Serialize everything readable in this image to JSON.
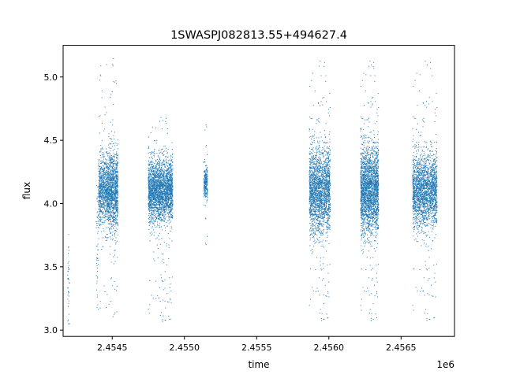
{
  "chart_data": {
    "type": "scatter",
    "title": "1SWASPJ082813.55+494627.4",
    "xlabel": "time",
    "ylabel": "flux",
    "x_offset_label": "1e6",
    "xlim": [
      2454160,
      2456870
    ],
    "ylim": [
      2.95,
      5.25
    ],
    "xticks": [
      2454500,
      2455000,
      2455500,
      2456000,
      2456500
    ],
    "xtick_labels": [
      "2.4545",
      "2.4550",
      "2.4555",
      "2.4560",
      "2.4565"
    ],
    "yticks": [
      3.0,
      3.5,
      4.0,
      4.5,
      5.0
    ],
    "ytick_labels": [
      "3.0",
      "3.5",
      "4.0",
      "4.5",
      "5.0"
    ],
    "grid": false,
    "marker_color": "#1f77b4",
    "series": [
      {
        "clusters": [
          {
            "x_start": 2454190,
            "x_end": 2454205,
            "count": 40,
            "center": 3.35,
            "spread": 0.2,
            "ymin": 3.05,
            "ymax": 3.78
          },
          {
            "x_start": 2454390,
            "x_end": 2454405,
            "count": 50,
            "center": 3.6,
            "spread": 0.3,
            "ymin": 3.05,
            "ymax": 4.3
          },
          {
            "x_start": 2454405,
            "x_end": 2454475,
            "count": 900,
            "center": 4.1,
            "spread": 0.13,
            "ymin": 3.1,
            "ymax": 5.15
          },
          {
            "x_start": 2454475,
            "x_end": 2454540,
            "count": 1100,
            "center": 4.1,
            "spread": 0.15,
            "ymin": 3.1,
            "ymax": 5.15
          },
          {
            "x_start": 2454750,
            "x_end": 2454920,
            "count": 2600,
            "center": 4.1,
            "spread": 0.12,
            "ymin": 3.05,
            "ymax": 4.7
          },
          {
            "x_start": 2455135,
            "x_end": 2455160,
            "count": 250,
            "center": 4.15,
            "spread": 0.06,
            "ymin": 3.55,
            "ymax": 4.65
          },
          {
            "x_start": 2455865,
            "x_end": 2456010,
            "count": 2200,
            "center": 4.1,
            "spread": 0.17,
            "ymin": 3.05,
            "ymax": 5.15
          },
          {
            "x_start": 2456220,
            "x_end": 2456345,
            "count": 2400,
            "center": 4.1,
            "spread": 0.17,
            "ymin": 3.05,
            "ymax": 5.15
          },
          {
            "x_start": 2456580,
            "x_end": 2456750,
            "count": 2200,
            "center": 4.1,
            "spread": 0.14,
            "ymin": 3.05,
            "ymax": 5.15
          }
        ]
      }
    ]
  }
}
